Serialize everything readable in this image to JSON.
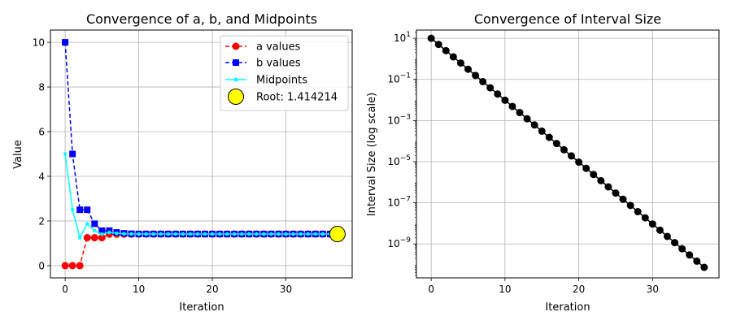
{
  "chart_data": [
    {
      "type": "line",
      "title": "Convergence of a, b, and Midpoints",
      "xlabel": "Iteration",
      "ylabel": "Value",
      "xlim": [
        -2,
        39
      ],
      "ylim": [
        -0.55,
        10.55
      ],
      "xticks": [
        0,
        10,
        20,
        30
      ],
      "yticks": [
        0,
        2,
        4,
        6,
        8,
        10
      ],
      "grid": true,
      "legend_position": "top-right",
      "x": [
        0,
        1,
        2,
        3,
        4,
        5,
        6,
        7,
        8,
        9,
        10,
        11,
        12,
        13,
        14,
        15,
        16,
        17,
        18,
        19,
        20,
        21,
        22,
        23,
        24,
        25,
        26,
        27,
        28,
        29,
        30,
        31,
        32,
        33,
        34,
        35,
        36,
        37
      ],
      "series": [
        {
          "name": "a values",
          "color": "#ff0000",
          "marker": "circle",
          "style": "dashed",
          "values": [
            0,
            0,
            0,
            1.25,
            1.25,
            1.25,
            1.40625,
            1.40625,
            1.40625,
            1.41016,
            1.41211,
            1.41309,
            1.41357,
            1.41406,
            1.41406,
            1.41418,
            1.41418,
            1.41421,
            1.41421,
            1.41421,
            1.41421,
            1.41421,
            1.41421,
            1.41421,
            1.41421,
            1.41421,
            1.41421,
            1.41421,
            1.41421,
            1.41421,
            1.41421,
            1.41421,
            1.41421,
            1.41421,
            1.41421,
            1.41421,
            1.41421,
            1.41421
          ]
        },
        {
          "name": "b values",
          "color": "#0000ff",
          "marker": "square",
          "style": "dashed",
          "values": [
            10,
            5,
            2.5,
            2.5,
            1.875,
            1.5625,
            1.5625,
            1.48438,
            1.44531,
            1.42578,
            1.41602,
            1.41602,
            1.41602,
            1.41602,
            1.41431,
            1.41431,
            1.41431,
            1.41431,
            1.41424,
            1.41422,
            1.41422,
            1.41421,
            1.41421,
            1.41421,
            1.41421,
            1.41421,
            1.41421,
            1.41421,
            1.41421,
            1.41421,
            1.41421,
            1.41421,
            1.41421,
            1.41421,
            1.41421,
            1.41421,
            1.41421,
            1.41421
          ]
        },
        {
          "name": "Midpoints",
          "color": "#00ffff",
          "marker": "dot",
          "style": "solid",
          "values": [
            5,
            2.5,
            1.25,
            1.875,
            1.5625,
            1.40625,
            1.48438,
            1.44531,
            1.42578,
            1.41602,
            1.41406,
            1.41455,
            1.4148,
            1.41504,
            1.41418,
            1.41425,
            1.41422,
            1.41421,
            1.41421,
            1.41421,
            1.41421,
            1.41421,
            1.41421,
            1.41421,
            1.41421,
            1.41421,
            1.41421,
            1.41421,
            1.41421,
            1.41421,
            1.41421,
            1.41421,
            1.41421,
            1.41421,
            1.41421,
            1.41421,
            1.41421,
            1.41421
          ]
        }
      ],
      "root": {
        "name": "Root: 1.414214",
        "x": 37,
        "y": 1.414214,
        "color": "#ffff00"
      }
    },
    {
      "type": "scatter",
      "title": "Convergence of Interval Size",
      "xlabel": "Iteration",
      "ylabel": "Interval Size (log scale)",
      "yscale": "log",
      "xlim": [
        -2,
        39
      ],
      "ylim_exponent": [
        -10.65,
        1.4
      ],
      "xticks": [
        0,
        10,
        20,
        30
      ],
      "yticks_exponent": [
        1,
        -1,
        -3,
        -5,
        -7,
        -9
      ],
      "grid": true,
      "color": "#000000",
      "marker": "circle",
      "style": "solid",
      "x": [
        0,
        1,
        2,
        3,
        4,
        5,
        6,
        7,
        8,
        9,
        10,
        11,
        12,
        13,
        14,
        15,
        16,
        17,
        18,
        19,
        20,
        21,
        22,
        23,
        24,
        25,
        26,
        27,
        28,
        29,
        30,
        31,
        32,
        33,
        34,
        35,
        36,
        37
      ],
      "values": [
        10,
        5,
        2.5,
        1.25,
        0.625,
        0.3125,
        0.15625,
        0.078125,
        0.0390625,
        0.01953125,
        0.009765625,
        0.0048828125,
        0.00244140625,
        0.001220703125,
        0.0006103515625,
        0.00030517578125,
        0.000152587890625,
        7.62939453125e-05,
        3.814697265625e-05,
        1.9073486328125e-05,
        9.5367431640625e-06,
        4.76837158203125e-06,
        2.384185791015625e-06,
        1.1920928955078125e-06,
        5.960464477539062e-07,
        2.980232238769531e-07,
        1.4901161193847656e-07,
        7.450580596923828e-08,
        3.725290298461914e-08,
        1.862645149230957e-08,
        9.313225746154785e-09,
        4.656612873077393e-09,
        2.3283064365386963e-09,
        1.1641532182693481e-09,
        5.820766091346741e-10,
        2.9103830456733704e-10,
        1.4551915228366852e-10,
        7.275957614183426e-11
      ]
    }
  ]
}
